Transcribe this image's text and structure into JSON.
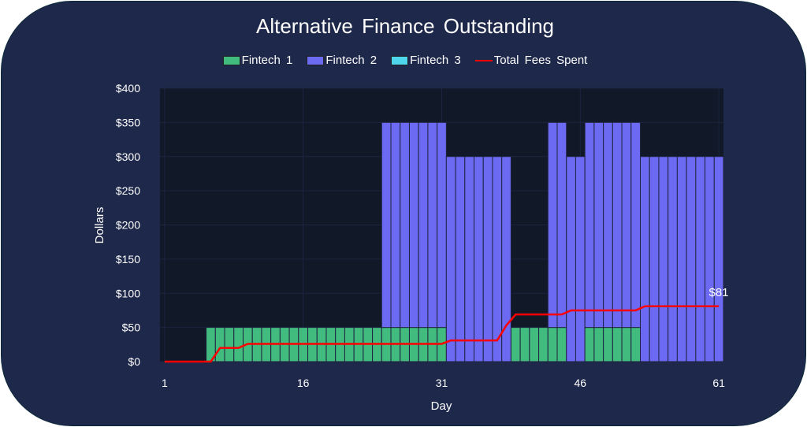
{
  "chart_data": {
    "type": "bar",
    "title": "Alternative Finance Outstanding",
    "xlabel": "Day",
    "ylabel": "Dollars",
    "ylim": [
      0,
      400
    ],
    "xlim": [
      1,
      61
    ],
    "x_ticks": [
      "1",
      "16",
      "31",
      "46",
      "61"
    ],
    "y_ticks": [
      "$0",
      "$50",
      "$100",
      "$150",
      "$200",
      "$250",
      "$300",
      "$350",
      "$400"
    ],
    "grid": true,
    "legend_position": "top-center",
    "stacked": true,
    "days": [
      1,
      2,
      3,
      4,
      5,
      6,
      7,
      8,
      9,
      10,
      11,
      12,
      13,
      14,
      15,
      16,
      17,
      18,
      19,
      20,
      21,
      22,
      23,
      24,
      25,
      26,
      27,
      28,
      29,
      30,
      31,
      32,
      33,
      34,
      35,
      36,
      37,
      38,
      39,
      40,
      41,
      42,
      43,
      44,
      45,
      46,
      47,
      48,
      49,
      50,
      51,
      52,
      53,
      54,
      55,
      56,
      57,
      58,
      59,
      60,
      61
    ],
    "series": [
      {
        "name": "Fintech 1",
        "kind": "bar",
        "color": "#41bb7e",
        "values": [
          0,
          0,
          0,
          0,
          0,
          50,
          50,
          50,
          50,
          50,
          50,
          50,
          50,
          50,
          50,
          50,
          50,
          50,
          50,
          50,
          50,
          50,
          50,
          50,
          50,
          50,
          50,
          50,
          50,
          50,
          50,
          0,
          0,
          0,
          0,
          0,
          0,
          0,
          50,
          50,
          50,
          50,
          50,
          50,
          0,
          0,
          50,
          50,
          50,
          50,
          50,
          50,
          0,
          0,
          0,
          0,
          0,
          0,
          0,
          0,
          0
        ]
      },
      {
        "name": "Fintech 2",
        "kind": "bar",
        "color": "#6c6af2",
        "values": [
          0,
          0,
          0,
          0,
          0,
          0,
          0,
          0,
          0,
          0,
          0,
          0,
          0,
          0,
          0,
          0,
          0,
          0,
          0,
          0,
          0,
          0,
          0,
          0,
          300,
          300,
          300,
          300,
          300,
          300,
          300,
          300,
          300,
          300,
          300,
          300,
          300,
          300,
          0,
          0,
          0,
          0,
          300,
          300,
          300,
          300,
          300,
          300,
          300,
          300,
          300,
          300,
          300,
          300,
          300,
          300,
          300,
          300,
          300,
          300,
          300
        ]
      },
      {
        "name": "Fintech 3",
        "kind": "bar",
        "color": "#4dd6ec",
        "values": [
          0,
          0,
          0,
          0,
          0,
          0,
          0,
          0,
          0,
          0,
          0,
          0,
          0,
          0,
          0,
          0,
          0,
          0,
          0,
          0,
          0,
          0,
          0,
          0,
          0,
          0,
          0,
          0,
          0,
          0,
          0,
          0,
          0,
          0,
          0,
          0,
          0,
          0,
          0,
          0,
          0,
          0,
          0,
          0,
          0,
          0,
          0,
          0,
          0,
          0,
          0,
          0,
          0,
          0,
          0,
          0,
          0,
          0,
          0,
          0,
          0
        ]
      },
      {
        "name": "Total Fees Spent",
        "kind": "line",
        "color": "#ff0000",
        "values": [
          0,
          0,
          0,
          0,
          0,
          0,
          20,
          20,
          20,
          26,
          26,
          26,
          26,
          26,
          26,
          26,
          26,
          26,
          26,
          26,
          26,
          26,
          26,
          26,
          26,
          26,
          26,
          26,
          26,
          26,
          26,
          31,
          31,
          31,
          31,
          31,
          31,
          53,
          69,
          69,
          69,
          69,
          69,
          69,
          75,
          75,
          75,
          75,
          75,
          75,
          75,
          75,
          81,
          81,
          81,
          81,
          81,
          81,
          81,
          81,
          81
        ]
      }
    ],
    "annotations": [
      "$81"
    ]
  }
}
